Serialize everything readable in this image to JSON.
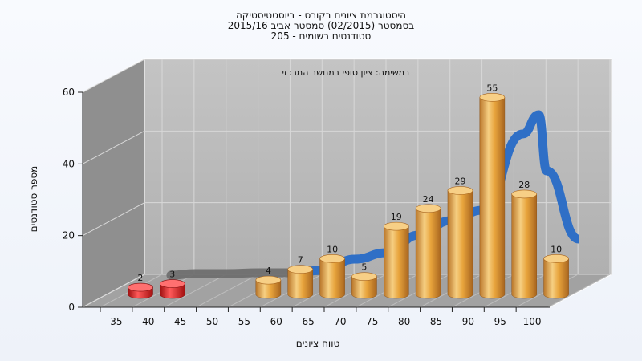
{
  "chart_data": {
    "type": "bar",
    "title_lines": [
      "היסטוגרמת ציונים בקורס - ביוסטטיסטיקה",
      "בסמסטר (02/2015) סמסטר אביב 2015/16",
      "סטודנטים רשומים - 205"
    ],
    "annotation": "במשימה: ציון סופי במחשב המרכזי",
    "xlabel": "טווח ציונים",
    "ylabel": "מספר סטודנטים",
    "categories": [
      "35",
      "40",
      "45",
      "50",
      "55",
      "60",
      "65",
      "70",
      "75",
      "80",
      "85",
      "90",
      "95",
      "100"
    ],
    "values": [
      2,
      3,
      0,
      0,
      4,
      7,
      10,
      5,
      19,
      24,
      29,
      55,
      28,
      10
    ],
    "bar_labels": [
      "2",
      "3",
      "",
      "",
      "4",
      "7",
      "10",
      "5",
      "19",
      "24",
      "29",
      "55",
      "28",
      "10"
    ],
    "ylim": [
      0,
      60
    ],
    "yticks": [
      "0",
      "20",
      "40",
      "60"
    ],
    "grid": true,
    "colors": {
      "bar_low": "#d81e1e",
      "bar_normal": "#e8a43c",
      "curve": "#2f6fc6",
      "curve_shadow": "#6b6b6b",
      "wall": "#b9b9b9",
      "side_wall": "#8f8f8f",
      "floor": "#9c9c9c"
    }
  }
}
